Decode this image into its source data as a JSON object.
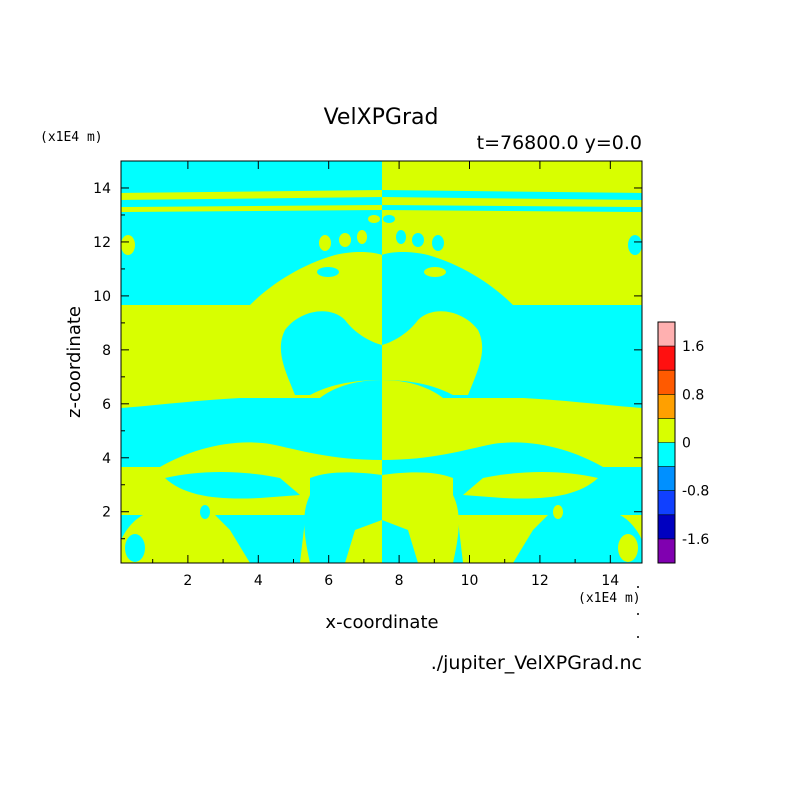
{
  "chart_data": {
    "type": "heatmap",
    "title": "VelXPGrad",
    "subtitle": "t=76800.0 y=0.0",
    "xlabel": "x-coordinate",
    "ylabel": "z-coordinate",
    "x_unit": "(x1E4 m)",
    "y_unit": "(x1E4 m)",
    "xlim": [
      0.1,
      14.9
    ],
    "ylim": [
      0.1,
      15.0
    ],
    "x_ticks": [
      2,
      4,
      6,
      8,
      10,
      12,
      14
    ],
    "y_ticks": [
      2,
      4,
      6,
      8,
      10,
      12,
      14
    ],
    "footer": "./jupiter_VelXPGrad.nc",
    "colors": {
      "positive": "#d8ff00",
      "negative": "#00ffff"
    },
    "colorbar": {
      "levels": [
        {
          "color": "#ffb0b0"
        },
        {
          "color": "#ff1010"
        },
        {
          "color": "#ff5a00"
        },
        {
          "color": "#ffa000"
        },
        {
          "color": "#d8ff00"
        },
        {
          "color": "#00ffff"
        },
        {
          "color": "#0090ff"
        },
        {
          "color": "#1040ff"
        },
        {
          "color": "#0000c0"
        },
        {
          "color": "#8000b0"
        }
      ],
      "tick_labels": [
        "1.6",
        "0.8",
        "0",
        "-0.8",
        "-1.6"
      ]
    },
    "regions_note": "field is mostly near zero; two-colour banded pattern, mirrored about x=7.5 with sign flip"
  }
}
